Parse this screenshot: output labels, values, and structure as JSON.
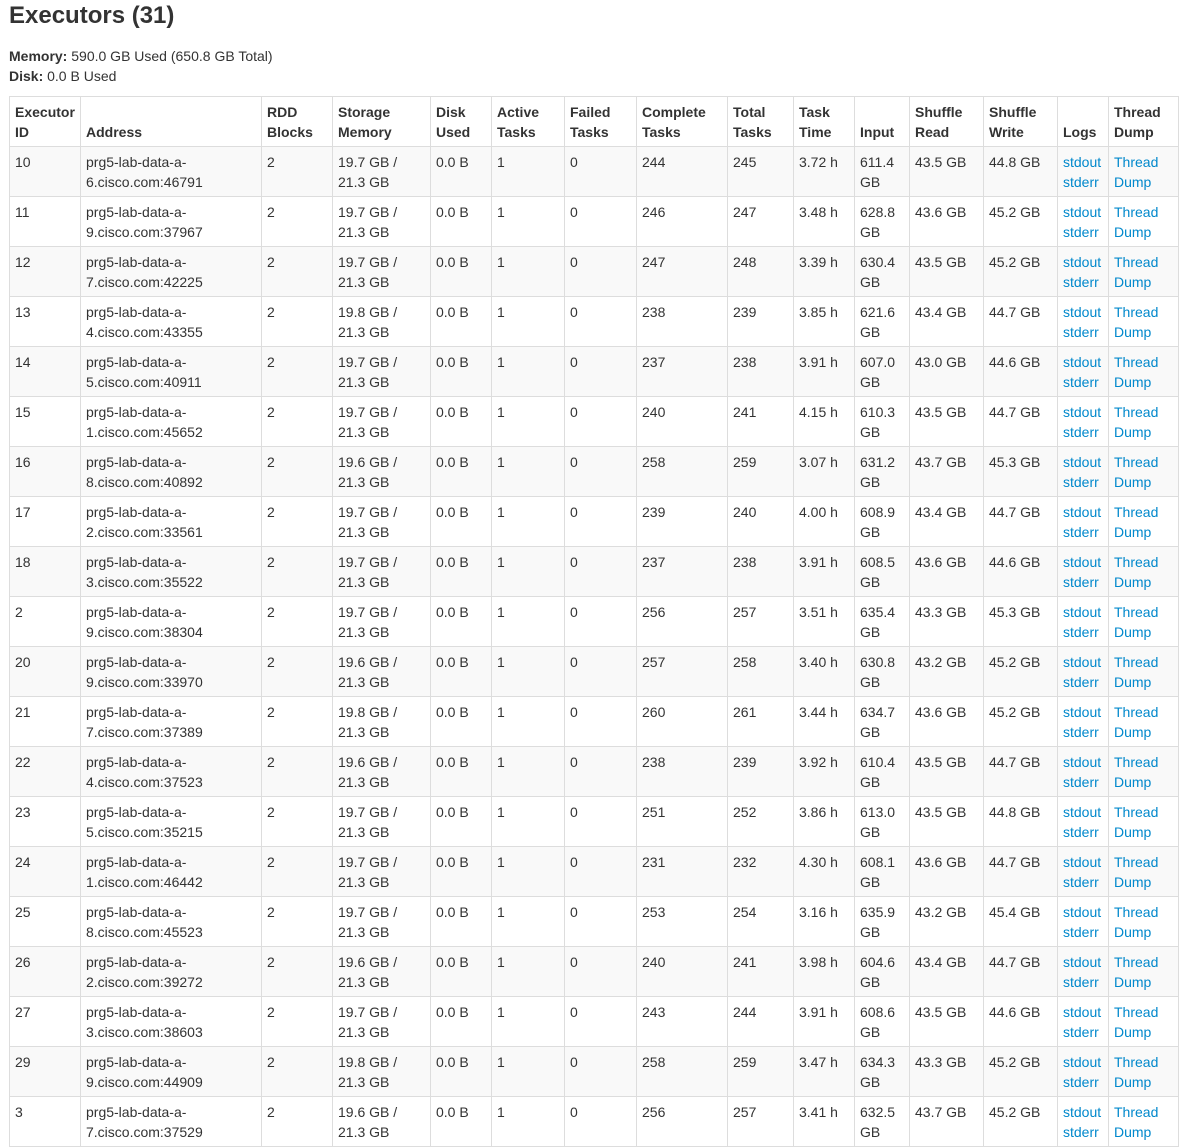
{
  "title": "Executors (31)",
  "summary": {
    "memory_label": "Memory:",
    "memory_value": " 590.0 GB Used (650.8 GB Total)",
    "disk_label": "Disk:",
    "disk_value": " 0.0 B Used"
  },
  "columns": [
    "Executor ID",
    "Address",
    "RDD Blocks",
    "Storage Memory",
    "Disk Used",
    "Active Tasks",
    "Failed Tasks",
    "Complete Tasks",
    "Total Tasks",
    "Task Time",
    "Input",
    "Shuffle Read",
    "Shuffle Write",
    "Logs",
    "Thread Dump"
  ],
  "links": {
    "stdout": "stdout",
    "stderr": "stderr",
    "thread_dump": "Thread Dump"
  },
  "link_color": "#0088cc",
  "rows": [
    [
      "10",
      "prg5-lab-data-a-6.cisco.com:46791",
      "2",
      "19.7 GB / 21.3 GB",
      "0.0 B",
      "1",
      "0",
      "244",
      "245",
      "3.72 h",
      "611.4 GB",
      "43.5 GB",
      "44.8 GB"
    ],
    [
      "11",
      "prg5-lab-data-a-9.cisco.com:37967",
      "2",
      "19.7 GB / 21.3 GB",
      "0.0 B",
      "1",
      "0",
      "246",
      "247",
      "3.48 h",
      "628.8 GB",
      "43.6 GB",
      "45.2 GB"
    ],
    [
      "12",
      "prg5-lab-data-a-7.cisco.com:42225",
      "2",
      "19.7 GB / 21.3 GB",
      "0.0 B",
      "1",
      "0",
      "247",
      "248",
      "3.39 h",
      "630.4 GB",
      "43.5 GB",
      "45.2 GB"
    ],
    [
      "13",
      "prg5-lab-data-a-4.cisco.com:43355",
      "2",
      "19.8 GB / 21.3 GB",
      "0.0 B",
      "1",
      "0",
      "238",
      "239",
      "3.85 h",
      "621.6 GB",
      "43.4 GB",
      "44.7 GB"
    ],
    [
      "14",
      "prg5-lab-data-a-5.cisco.com:40911",
      "2",
      "19.7 GB / 21.3 GB",
      "0.0 B",
      "1",
      "0",
      "237",
      "238",
      "3.91 h",
      "607.0 GB",
      "43.0 GB",
      "44.6 GB"
    ],
    [
      "15",
      "prg5-lab-data-a-1.cisco.com:45652",
      "2",
      "19.7 GB / 21.3 GB",
      "0.0 B",
      "1",
      "0",
      "240",
      "241",
      "4.15 h",
      "610.3 GB",
      "43.5 GB",
      "44.7 GB"
    ],
    [
      "16",
      "prg5-lab-data-a-8.cisco.com:40892",
      "2",
      "19.6 GB / 21.3 GB",
      "0.0 B",
      "1",
      "0",
      "258",
      "259",
      "3.07 h",
      "631.2 GB",
      "43.7 GB",
      "45.3 GB"
    ],
    [
      "17",
      "prg5-lab-data-a-2.cisco.com:33561",
      "2",
      "19.7 GB / 21.3 GB",
      "0.0 B",
      "1",
      "0",
      "239",
      "240",
      "4.00 h",
      "608.9 GB",
      "43.4 GB",
      "44.7 GB"
    ],
    [
      "18",
      "prg5-lab-data-a-3.cisco.com:35522",
      "2",
      "19.7 GB / 21.3 GB",
      "0.0 B",
      "1",
      "0",
      "237",
      "238",
      "3.91 h",
      "608.5 GB",
      "43.6 GB",
      "44.6 GB"
    ],
    [
      "2",
      "prg5-lab-data-a-9.cisco.com:38304",
      "2",
      "19.7 GB / 21.3 GB",
      "0.0 B",
      "1",
      "0",
      "256",
      "257",
      "3.51 h",
      "635.4 GB",
      "43.3 GB",
      "45.3 GB"
    ],
    [
      "20",
      "prg5-lab-data-a-9.cisco.com:33970",
      "2",
      "19.6 GB / 21.3 GB",
      "0.0 B",
      "1",
      "0",
      "257",
      "258",
      "3.40 h",
      "630.8 GB",
      "43.2 GB",
      "45.2 GB"
    ],
    [
      "21",
      "prg5-lab-data-a-7.cisco.com:37389",
      "2",
      "19.8 GB / 21.3 GB",
      "0.0 B",
      "1",
      "0",
      "260",
      "261",
      "3.44 h",
      "634.7 GB",
      "43.6 GB",
      "45.2 GB"
    ],
    [
      "22",
      "prg5-lab-data-a-4.cisco.com:37523",
      "2",
      "19.6 GB / 21.3 GB",
      "0.0 B",
      "1",
      "0",
      "238",
      "239",
      "3.92 h",
      "610.4 GB",
      "43.5 GB",
      "44.7 GB"
    ],
    [
      "23",
      "prg5-lab-data-a-5.cisco.com:35215",
      "2",
      "19.7 GB / 21.3 GB",
      "0.0 B",
      "1",
      "0",
      "251",
      "252",
      "3.86 h",
      "613.0 GB",
      "43.5 GB",
      "44.8 GB"
    ],
    [
      "24",
      "prg5-lab-data-a-1.cisco.com:46442",
      "2",
      "19.7 GB / 21.3 GB",
      "0.0 B",
      "1",
      "0",
      "231",
      "232",
      "4.30 h",
      "608.1 GB",
      "43.6 GB",
      "44.7 GB"
    ],
    [
      "25",
      "prg5-lab-data-a-8.cisco.com:45523",
      "2",
      "19.7 GB / 21.3 GB",
      "0.0 B",
      "1",
      "0",
      "253",
      "254",
      "3.16 h",
      "635.9 GB",
      "43.2 GB",
      "45.4 GB"
    ],
    [
      "26",
      "prg5-lab-data-a-2.cisco.com:39272",
      "2",
      "19.6 GB / 21.3 GB",
      "0.0 B",
      "1",
      "0",
      "240",
      "241",
      "3.98 h",
      "604.6 GB",
      "43.4 GB",
      "44.7 GB"
    ],
    [
      "27",
      "prg5-lab-data-a-3.cisco.com:38603",
      "2",
      "19.7 GB / 21.3 GB",
      "0.0 B",
      "1",
      "0",
      "243",
      "244",
      "3.91 h",
      "608.6 GB",
      "43.5 GB",
      "44.6 GB"
    ],
    [
      "29",
      "prg5-lab-data-a-9.cisco.com:44909",
      "2",
      "19.8 GB / 21.3 GB",
      "0.0 B",
      "1",
      "0",
      "258",
      "259",
      "3.47 h",
      "634.3 GB",
      "43.3 GB",
      "45.2 GB"
    ],
    [
      "3",
      "prg5-lab-data-a-7.cisco.com:37529",
      "2",
      "19.6 GB / 21.3 GB",
      "0.0 B",
      "1",
      "0",
      "256",
      "257",
      "3.41 h",
      "632.5 GB",
      "43.7 GB",
      "45.2 GB"
    ]
  ]
}
